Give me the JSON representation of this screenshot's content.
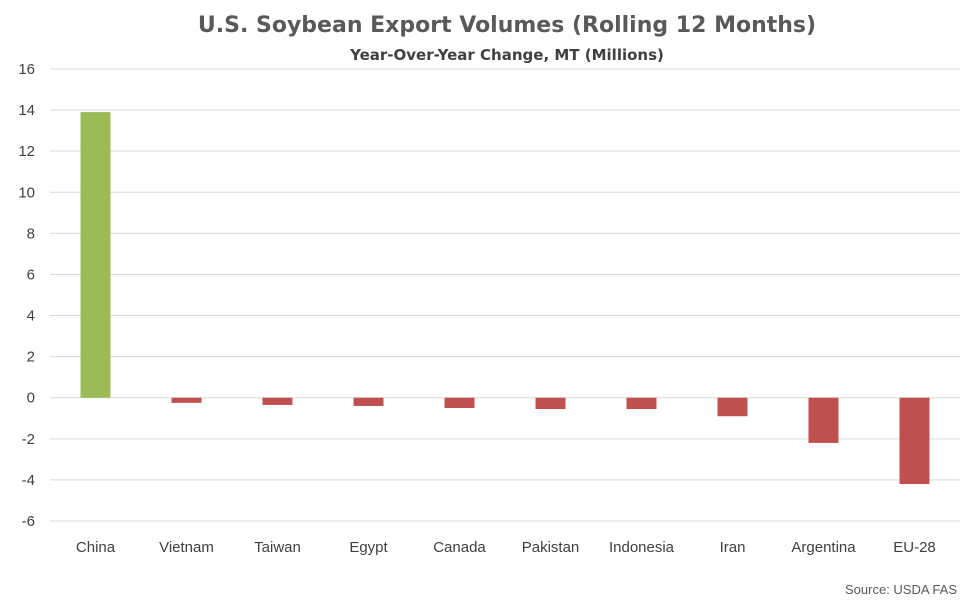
{
  "chart_data": {
    "type": "bar",
    "title": "U.S. Soybean Export Volumes (Rolling 12 Months)",
    "subtitle": "Year-Over-Year Change, MT (Millions)",
    "source": "Source: USDA FAS",
    "categories": [
      "China",
      "Vietnam",
      "Taiwan",
      "Egypt",
      "Canada",
      "Pakistan",
      "Indonesia",
      "Iran",
      "Argentina",
      "EU-28"
    ],
    "values": [
      13.9,
      -0.25,
      -0.35,
      -0.4,
      -0.5,
      -0.55,
      -0.55,
      -0.9,
      -2.2,
      -4.2
    ],
    "ylim": [
      -6,
      16
    ],
    "yticks": [
      16,
      14,
      12,
      10,
      8,
      6,
      4,
      2,
      0,
      -2,
      -4,
      -6
    ],
    "grid": true,
    "colors": {
      "positive": "#9bbb59",
      "negative": "#c0504d",
      "grid": "#d9d9d9",
      "text": "#404040"
    }
  }
}
